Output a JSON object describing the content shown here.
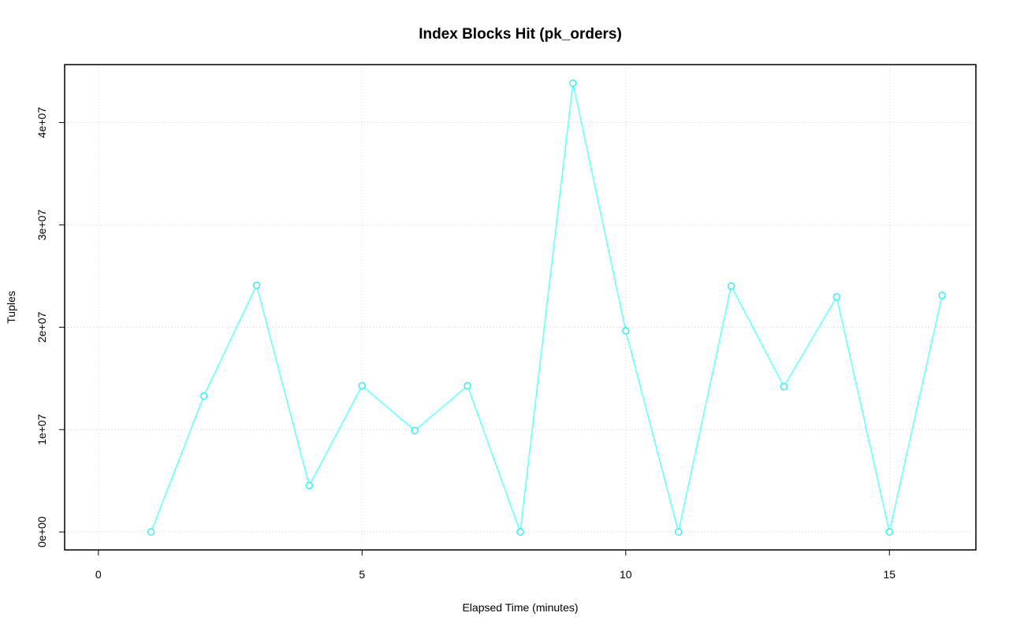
{
  "chart_data": {
    "type": "line",
    "title": "Index Blocks Hit (pk_orders)",
    "x_label": "Elapsed Time (minutes)",
    "y_label": "Tuples",
    "x": [
      1,
      2,
      3,
      4,
      5,
      6,
      7,
      8,
      9,
      10,
      11,
      12,
      13,
      14,
      15,
      16
    ],
    "values": [
      0,
      13280000,
      24100000,
      4530000,
      14280000,
      9900000,
      14280000,
      0,
      43840000,
      19650000,
      0,
      24030000,
      14200000,
      22960000,
      0,
      23110000
    ],
    "color": "#66ffff",
    "marker_color": "#33eeee",
    "xlim": [
      -0.64,
      16.64
    ],
    "ylim": [
      -1756000,
      45660000
    ],
    "xticks": [
      0,
      5,
      10,
      15
    ],
    "yticks": [
      {
        "value": 0,
        "label": "0e+00"
      },
      {
        "value": 10000000,
        "label": "1e+07"
      },
      {
        "value": 20000000,
        "label": "2e+07"
      },
      {
        "value": 30000000,
        "label": "3e+07"
      },
      {
        "value": 40000000,
        "label": "4e+07"
      }
    ],
    "grid": true
  }
}
